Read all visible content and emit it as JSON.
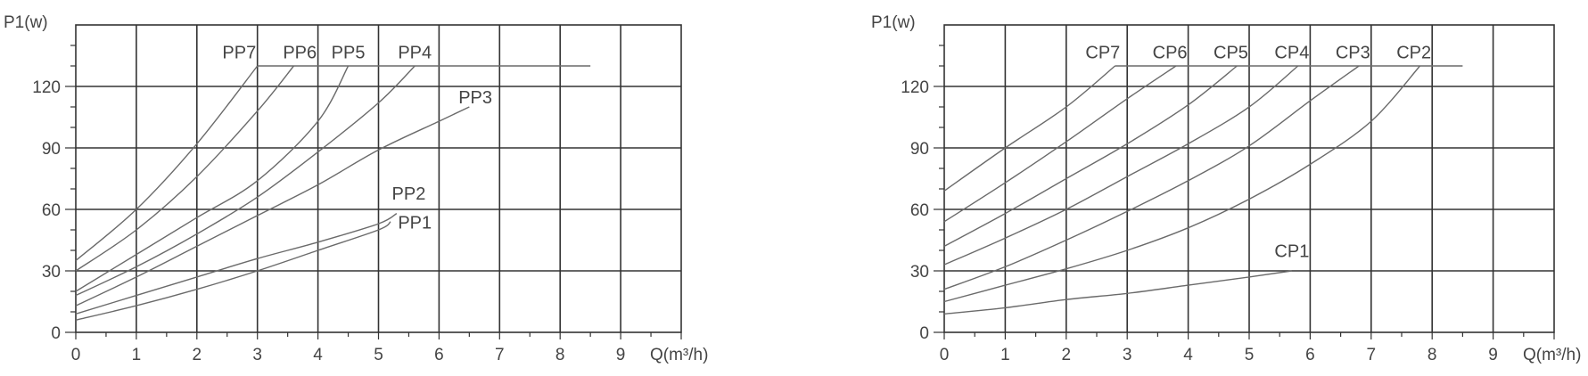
{
  "chart_data": [
    {
      "type": "line",
      "ylabel": "P1(w)",
      "xlabel": "Q(m³/h)",
      "xlim": [
        0,
        10
      ],
      "ylim": [
        0,
        150
      ],
      "xticks": [
        0,
        1,
        2,
        3,
        4,
        5,
        6,
        7,
        8,
        9
      ],
      "yticks": [
        0,
        30,
        60,
        90,
        120
      ],
      "grid": true,
      "limit_line": {
        "y": 130,
        "x_end": 8.5
      },
      "series": [
        {
          "name": "PP7",
          "points": [
            [
              0,
              35
            ],
            [
              1,
              60
            ],
            [
              2,
              92
            ],
            [
              3,
              130
            ]
          ],
          "label_at": [
            2.7,
            132
          ]
        },
        {
          "name": "PP6",
          "points": [
            [
              0,
              30
            ],
            [
              1,
              50
            ],
            [
              2,
              76
            ],
            [
              3,
              108
            ],
            [
              3.6,
              130
            ]
          ],
          "label_at": [
            3.7,
            132
          ]
        },
        {
          "name": "PP5",
          "points": [
            [
              0,
              20
            ],
            [
              1,
              38
            ],
            [
              2,
              56
            ],
            [
              3,
              74
            ],
            [
              4,
              103
            ],
            [
              4.5,
              130
            ]
          ],
          "label_at": [
            4.5,
            132
          ]
        },
        {
          "name": "PP4",
          "points": [
            [
              0,
              18
            ],
            [
              1,
              32
            ],
            [
              2,
              48
            ],
            [
              3,
              66
            ],
            [
              4,
              88
            ],
            [
              5,
              112
            ],
            [
              5.6,
              130
            ]
          ],
          "label_at": [
            5.6,
            132
          ]
        },
        {
          "name": "PP3",
          "points": [
            [
              0,
              13
            ],
            [
              1,
              27
            ],
            [
              2,
              42
            ],
            [
              3,
              57
            ],
            [
              4,
              72
            ],
            [
              5,
              89
            ],
            [
              6,
              103
            ],
            [
              6.5,
              110
            ]
          ],
          "label_at": [
            6.6,
            110
          ]
        },
        {
          "name": "PP2",
          "points": [
            [
              0,
              9
            ],
            [
              1,
              18
            ],
            [
              2,
              27
            ],
            [
              3,
              36
            ],
            [
              4,
              44
            ],
            [
              5,
              53
            ],
            [
              5.3,
              58
            ]
          ],
          "label_at": [
            5.5,
            63
          ]
        },
        {
          "name": "PP1",
          "points": [
            [
              0,
              6
            ],
            [
              1,
              13
            ],
            [
              2,
              21
            ],
            [
              3,
              30
            ],
            [
              4,
              40
            ],
            [
              5,
              50
            ],
            [
              5.2,
              54
            ]
          ],
          "label_at": [
            5.6,
            49
          ]
        }
      ]
    },
    {
      "type": "line",
      "ylabel": "P1(w)",
      "xlabel": "Q(m³/h)",
      "xlim": [
        0,
        10
      ],
      "ylim": [
        0,
        150
      ],
      "xticks": [
        0,
        1,
        2,
        3,
        4,
        5,
        6,
        7,
        8,
        9
      ],
      "yticks": [
        0,
        30,
        60,
        90,
        120
      ],
      "grid": true,
      "limit_line": {
        "y": 130,
        "x_end": 8.5
      },
      "series": [
        {
          "name": "CP7",
          "points": [
            [
              0,
              69
            ],
            [
              1,
              90
            ],
            [
              2,
              110
            ],
            [
              2.8,
              130
            ]
          ],
          "label_at": [
            2.6,
            132
          ]
        },
        {
          "name": "CP6",
          "points": [
            [
              0,
              54
            ],
            [
              1,
              73
            ],
            [
              2,
              93
            ],
            [
              3,
              114
            ],
            [
              3.8,
              130
            ]
          ],
          "label_at": [
            3.7,
            132
          ]
        },
        {
          "name": "CP5",
          "points": [
            [
              0,
              42
            ],
            [
              1,
              58
            ],
            [
              2,
              75
            ],
            [
              3,
              92
            ],
            [
              4,
              111
            ],
            [
              4.8,
              130
            ]
          ],
          "label_at": [
            4.7,
            132
          ]
        },
        {
          "name": "CP4",
          "points": [
            [
              0,
              33
            ],
            [
              1,
              46
            ],
            [
              2,
              60
            ],
            [
              3,
              76
            ],
            [
              4,
              92
            ],
            [
              5,
              110
            ],
            [
              5.8,
              130
            ]
          ],
          "label_at": [
            5.7,
            132
          ]
        },
        {
          "name": "CP3",
          "points": [
            [
              0,
              21
            ],
            [
              1,
              32
            ],
            [
              2,
              45
            ],
            [
              3,
              59
            ],
            [
              4,
              74
            ],
            [
              5,
              91
            ],
            [
              6,
              113
            ],
            [
              6.8,
              130
            ]
          ],
          "label_at": [
            6.7,
            132
          ]
        },
        {
          "name": "CP2",
          "points": [
            [
              0,
              15
            ],
            [
              1,
              23
            ],
            [
              2,
              31
            ],
            [
              3,
              40
            ],
            [
              4,
              51
            ],
            [
              5,
              65
            ],
            [
              6,
              82
            ],
            [
              7,
              103
            ],
            [
              7.8,
              130
            ]
          ],
          "label_at": [
            7.7,
            132
          ]
        },
        {
          "name": "CP1",
          "points": [
            [
              0,
              9
            ],
            [
              1,
              12
            ],
            [
              2,
              16
            ],
            [
              3,
              19
            ],
            [
              4,
              23
            ],
            [
              5,
              27
            ],
            [
              5.7,
              30
            ]
          ],
          "label_at": [
            5.7,
            35
          ]
        }
      ]
    }
  ]
}
